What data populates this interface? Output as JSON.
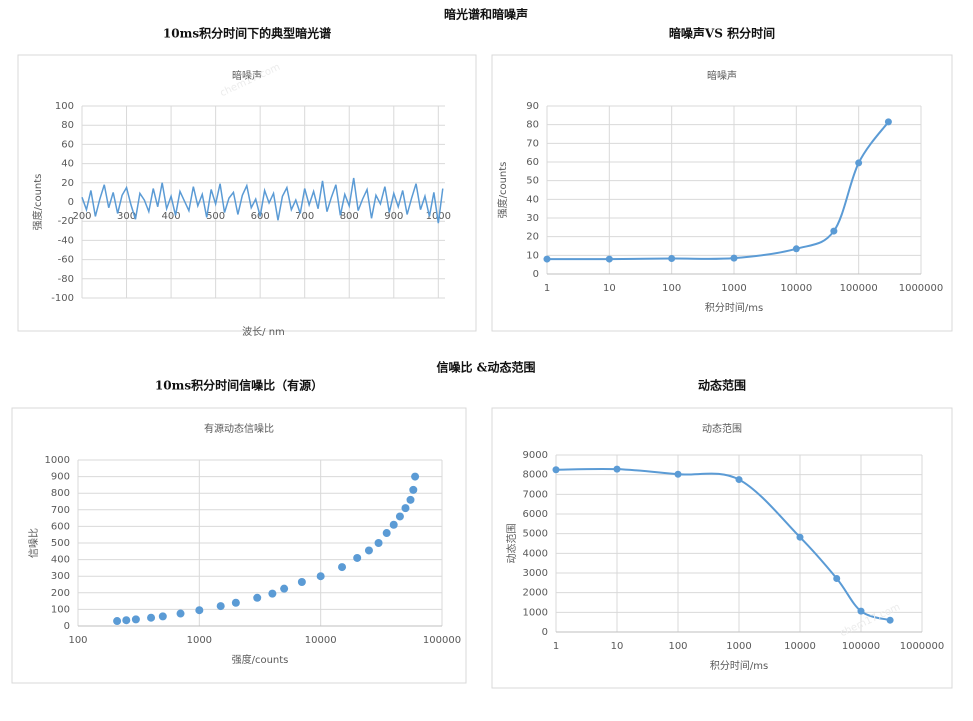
{
  "sections": [
    "暗光谱和暗噪声",
    "信噪比 &动态范围"
  ],
  "watermark": "chem17.com",
  "chart_data": [
    {
      "type": "line",
      "heading": "10ms积分时间下的典型暗光谱",
      "title": "暗噪声",
      "x_label": "波长/ nm",
      "y_label": "强度/counts",
      "x": [
        200,
        210,
        220,
        230,
        240,
        250,
        260,
        270,
        280,
        290,
        300,
        310,
        320,
        330,
        340,
        350,
        360,
        370,
        380,
        390,
        400,
        410,
        420,
        430,
        440,
        450,
        460,
        470,
        480,
        490,
        500,
        510,
        520,
        530,
        540,
        550,
        560,
        570,
        580,
        590,
        600,
        610,
        620,
        630,
        640,
        650,
        660,
        670,
        680,
        690,
        700,
        710,
        720,
        730,
        740,
        750,
        760,
        770,
        780,
        790,
        800,
        810,
        820,
        830,
        840,
        850,
        860,
        870,
        880,
        890,
        900,
        910,
        920,
        930,
        940,
        950,
        960,
        970,
        980,
        990,
        1000,
        1010
      ],
      "series": [
        {
          "name": "暗噪声",
          "color": "#5b9bd5",
          "values": [
            5,
            -8,
            12,
            -15,
            3,
            18,
            -6,
            10,
            -12,
            7,
            15,
            -3,
            -18,
            9,
            2,
            -10,
            14,
            -5,
            20,
            -7,
            6,
            -14,
            11,
            1,
            -9,
            16,
            -4,
            8,
            -16,
            13,
            -2,
            19,
            -11,
            4,
            10,
            -13,
            7,
            17,
            -6,
            3,
            -15,
            12,
            -1,
            9,
            -19,
            6,
            15,
            -8,
            2,
            -12,
            14,
            -3,
            11,
            -7,
            22,
            -10,
            5,
            18,
            -14,
            8,
            -4,
            25,
            -9,
            3,
            13,
            -17,
            7,
            -2,
            16,
            -11,
            9,
            -5,
            12,
            -13,
            4,
            19,
            -8,
            6,
            -15,
            10,
            -22,
            14
          ]
        }
      ],
      "xlim": [
        200,
        1015
      ],
      "xticks": [
        200,
        300,
        400,
        500,
        600,
        700,
        800,
        900,
        1000
      ],
      "ylim": [
        -100,
        100
      ],
      "yticks": [
        -100,
        -80,
        -60,
        -40,
        -20,
        0,
        20,
        40,
        60,
        80,
        100
      ],
      "grid": true,
      "markers": false,
      "smooth": false,
      "xlog": false
    },
    {
      "type": "line",
      "heading": "暗噪声VS 积分时间",
      "title": "暗噪声",
      "x_label": "积分时间/ms",
      "y_label": "强度/counts",
      "x": [
        1,
        10,
        100,
        1000,
        10000,
        40000,
        100000,
        300000
      ],
      "series": [
        {
          "name": "暗噪声",
          "color": "#5b9bd5",
          "values": [
            8,
            8,
            8.3,
            8.5,
            13.5,
            23,
            59.5,
            81.5
          ]
        }
      ],
      "xlim": [
        1,
        1000000
      ],
      "xticks": [
        1,
        10,
        100,
        1000,
        10000,
        100000,
        1000000
      ],
      "ylim": [
        0,
        90
      ],
      "yticks": [
        0,
        10,
        20,
        30,
        40,
        50,
        60,
        70,
        80,
        90
      ],
      "grid": true,
      "markers": true,
      "smooth": true,
      "xlog": true
    },
    {
      "type": "scatter",
      "heading": "10ms积分时间信噪比（有源）",
      "title": "有源动态信噪比",
      "x_label": "强度/counts",
      "y_label": "信噪比",
      "x": [
        210,
        250,
        300,
        400,
        500,
        700,
        1000,
        1500,
        2000,
        3000,
        4000,
        5000,
        7000,
        10000,
        15000,
        20000,
        25000,
        30000,
        35000,
        40000,
        45000,
        50000,
        55000,
        58000,
        60000
      ],
      "series": [
        {
          "name": "有源动态信噪比",
          "color": "#5b9bd5",
          "values": [
            30,
            35,
            40,
            50,
            58,
            75,
            95,
            120,
            140,
            170,
            195,
            225,
            265,
            300,
            355,
            410,
            455,
            500,
            560,
            610,
            660,
            710,
            760,
            820,
            900
          ]
        }
      ],
      "xlim": [
        100,
        100000
      ],
      "xticks": [
        100,
        1000,
        10000,
        100000
      ],
      "ylim": [
        0,
        1000
      ],
      "yticks": [
        0,
        100,
        200,
        300,
        400,
        500,
        600,
        700,
        800,
        900,
        1000
      ],
      "grid": true,
      "markers": true,
      "smooth": false,
      "xlog": true
    },
    {
      "type": "line",
      "heading": "动态范围",
      "title": "动态范围",
      "x_label": "积分时间/ms",
      "y_label": "动态范围",
      "x": [
        1,
        10,
        100,
        1000,
        10000,
        40000,
        100000,
        300000
      ],
      "series": [
        {
          "name": "动态范围",
          "color": "#5b9bd5",
          "values": [
            8250,
            8280,
            8020,
            7750,
            4820,
            2720,
            1060,
            600
          ]
        }
      ],
      "xlim": [
        1,
        1000000
      ],
      "xticks": [
        1,
        10,
        100,
        1000,
        10000,
        100000,
        1000000
      ],
      "ylim": [
        0,
        9000
      ],
      "yticks": [
        0,
        1000,
        2000,
        3000,
        4000,
        5000,
        6000,
        7000,
        8000,
        9000
      ],
      "grid": true,
      "markers": true,
      "smooth": true,
      "xlog": true
    }
  ]
}
